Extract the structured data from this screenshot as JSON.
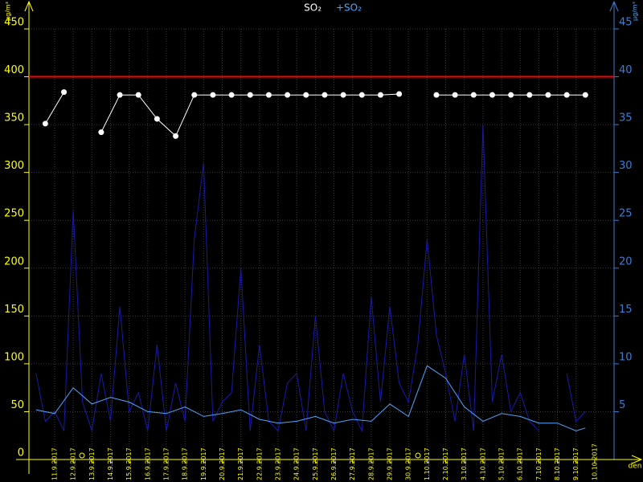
{
  "chart_data": {
    "type": "line",
    "title": "SO₂",
    "subtitle": "+SO₂",
    "y_unit": "µg/m³",
    "y2_unit": "µg/m³",
    "x_label": "den",
    "xlim": [
      -1.38,
      30.04
    ],
    "xticks": [
      {
        "value": 0,
        "label": "11.9.2017"
      },
      {
        "value": 1,
        "label": "12.9.2017"
      },
      {
        "value": 2,
        "label": "13.9.2017"
      },
      {
        "value": 3,
        "label": "14.9.2017"
      },
      {
        "value": 4,
        "label": "15.9.2017"
      },
      {
        "value": 5,
        "label": "16.9.2017"
      },
      {
        "value": 6,
        "label": "17.9.2017"
      },
      {
        "value": 7,
        "label": "18.9.2017"
      },
      {
        "value": 8,
        "label": "19.9.2017"
      },
      {
        "value": 9,
        "label": "20.9.2017"
      },
      {
        "value": 10,
        "label": "21.9.2017"
      },
      {
        "value": 11,
        "label": "22.9.2017"
      },
      {
        "value": 12,
        "label": "23.9.2017"
      },
      {
        "value": 13,
        "label": "24.9.2017"
      },
      {
        "value": 14,
        "label": "25.9.2017"
      },
      {
        "value": 15,
        "label": "26.9.2017"
      },
      {
        "value": 16,
        "label": "27.9.2017"
      },
      {
        "value": 17,
        "label": "28.9.2017"
      },
      {
        "value": 18,
        "label": "29.9.2017"
      },
      {
        "value": 19,
        "label": "30.9.2017"
      },
      {
        "value": 20,
        "label": "1.10.2017"
      },
      {
        "value": 21,
        "label": "2.10.2017"
      },
      {
        "value": 22,
        "label": "3.10.2017"
      },
      {
        "value": 23,
        "label": "4.10.2017"
      },
      {
        "value": 24,
        "label": "5.10.2017"
      },
      {
        "value": 25,
        "label": "6.10.2017"
      },
      {
        "value": 26,
        "label": "7.10.2017"
      },
      {
        "value": 27,
        "label": "8.10.2017"
      },
      {
        "value": 28,
        "label": "9.10.2017"
      },
      {
        "value": 29,
        "label": "10.10.2017"
      }
    ],
    "ylim": [
      0,
      450
    ],
    "yticks": [
      0,
      50,
      100,
      150,
      200,
      250,
      300,
      350,
      400,
      450
    ],
    "y2lim": [
      0,
      45
    ],
    "y2ticks": [
      5,
      10,
      15,
      20,
      25,
      30,
      35,
      40,
      45
    ],
    "limit_line": {
      "value": 400,
      "color": "#ff0000"
    },
    "grid": true,
    "series": [
      {
        "color": "#1a1aa8",
        "axis": "y2",
        "x": [
          -1,
          -0.5,
          0,
          0.5,
          1,
          1.5,
          2,
          2.5,
          3,
          3.5,
          4,
          4.5,
          5,
          5.5,
          6,
          6.5,
          7,
          7.5,
          8,
          8.5,
          9,
          9.5,
          10,
          10.5,
          11,
          11.5,
          12,
          12.5,
          13,
          13.5,
          14,
          14.5,
          15,
          15.5,
          16,
          16.5,
          17,
          17.5,
          18,
          18.5,
          19,
          19.5,
          20,
          20.5,
          21,
          21.5,
          22,
          22.5,
          23,
          23.5,
          24,
          24.5,
          25,
          25.5,
          26,
          26.5,
          27,
          27.5,
          28,
          28.5
        ],
        "values": [
          9,
          4,
          5,
          3,
          26,
          6,
          3,
          9,
          4,
          16,
          5,
          7,
          3,
          12,
          3,
          8,
          4,
          23,
          31,
          4,
          6,
          7,
          20,
          3,
          12,
          4,
          3,
          8,
          9,
          3,
          15,
          5,
          3,
          9,
          5,
          3,
          17,
          6,
          16,
          8,
          6,
          12,
          23,
          13,
          9,
          4,
          11,
          3,
          35,
          6,
          11,
          5,
          7,
          4,
          3,
          null,
          null,
          9,
          4,
          5
        ]
      },
      {
        "color": "#4da6ff",
        "axis": "y2",
        "x": [
          -1,
          0,
          1,
          2,
          3,
          4,
          5,
          6,
          7,
          8,
          9,
          10,
          11,
          12,
          13,
          14,
          15,
          16,
          17,
          18,
          19,
          20,
          21,
          22,
          23,
          24,
          25,
          26,
          27,
          28,
          28.5
        ],
        "values": [
          5.2,
          4.8,
          7.5,
          5.8,
          6.5,
          6.0,
          5.0,
          4.8,
          5.5,
          4.5,
          4.8,
          5.2,
          4.2,
          3.8,
          4.0,
          4.5,
          3.8,
          4.2,
          4.0,
          5.8,
          4.5,
          9.8,
          8.5,
          5.5,
          4.0,
          4.8,
          4.5,
          3.8,
          3.8,
          3.0,
          3.3
        ]
      },
      {
        "color": "#ffffff",
        "axis": "y",
        "markers": true,
        "x": [
          -0.5,
          0.5,
          1.5,
          2.5,
          3.5,
          4.5,
          5.5,
          6.5,
          7.5,
          8.5,
          9.5,
          10.5,
          11.5,
          12.5,
          13.5,
          14.5,
          15.5,
          16.5,
          17.5,
          18.5,
          19.5,
          20.5,
          21.5,
          22.5,
          23.5,
          24.5,
          25.5,
          26.5,
          27.5,
          28.5
        ],
        "values": [
          351,
          384,
          null,
          342,
          381,
          381,
          356,
          338,
          381,
          381,
          381,
          381,
          381,
          381,
          381,
          381,
          381,
          381,
          381,
          382,
          null,
          381,
          381,
          381,
          381,
          381,
          381,
          381,
          381,
          381
        ]
      }
    ]
  }
}
